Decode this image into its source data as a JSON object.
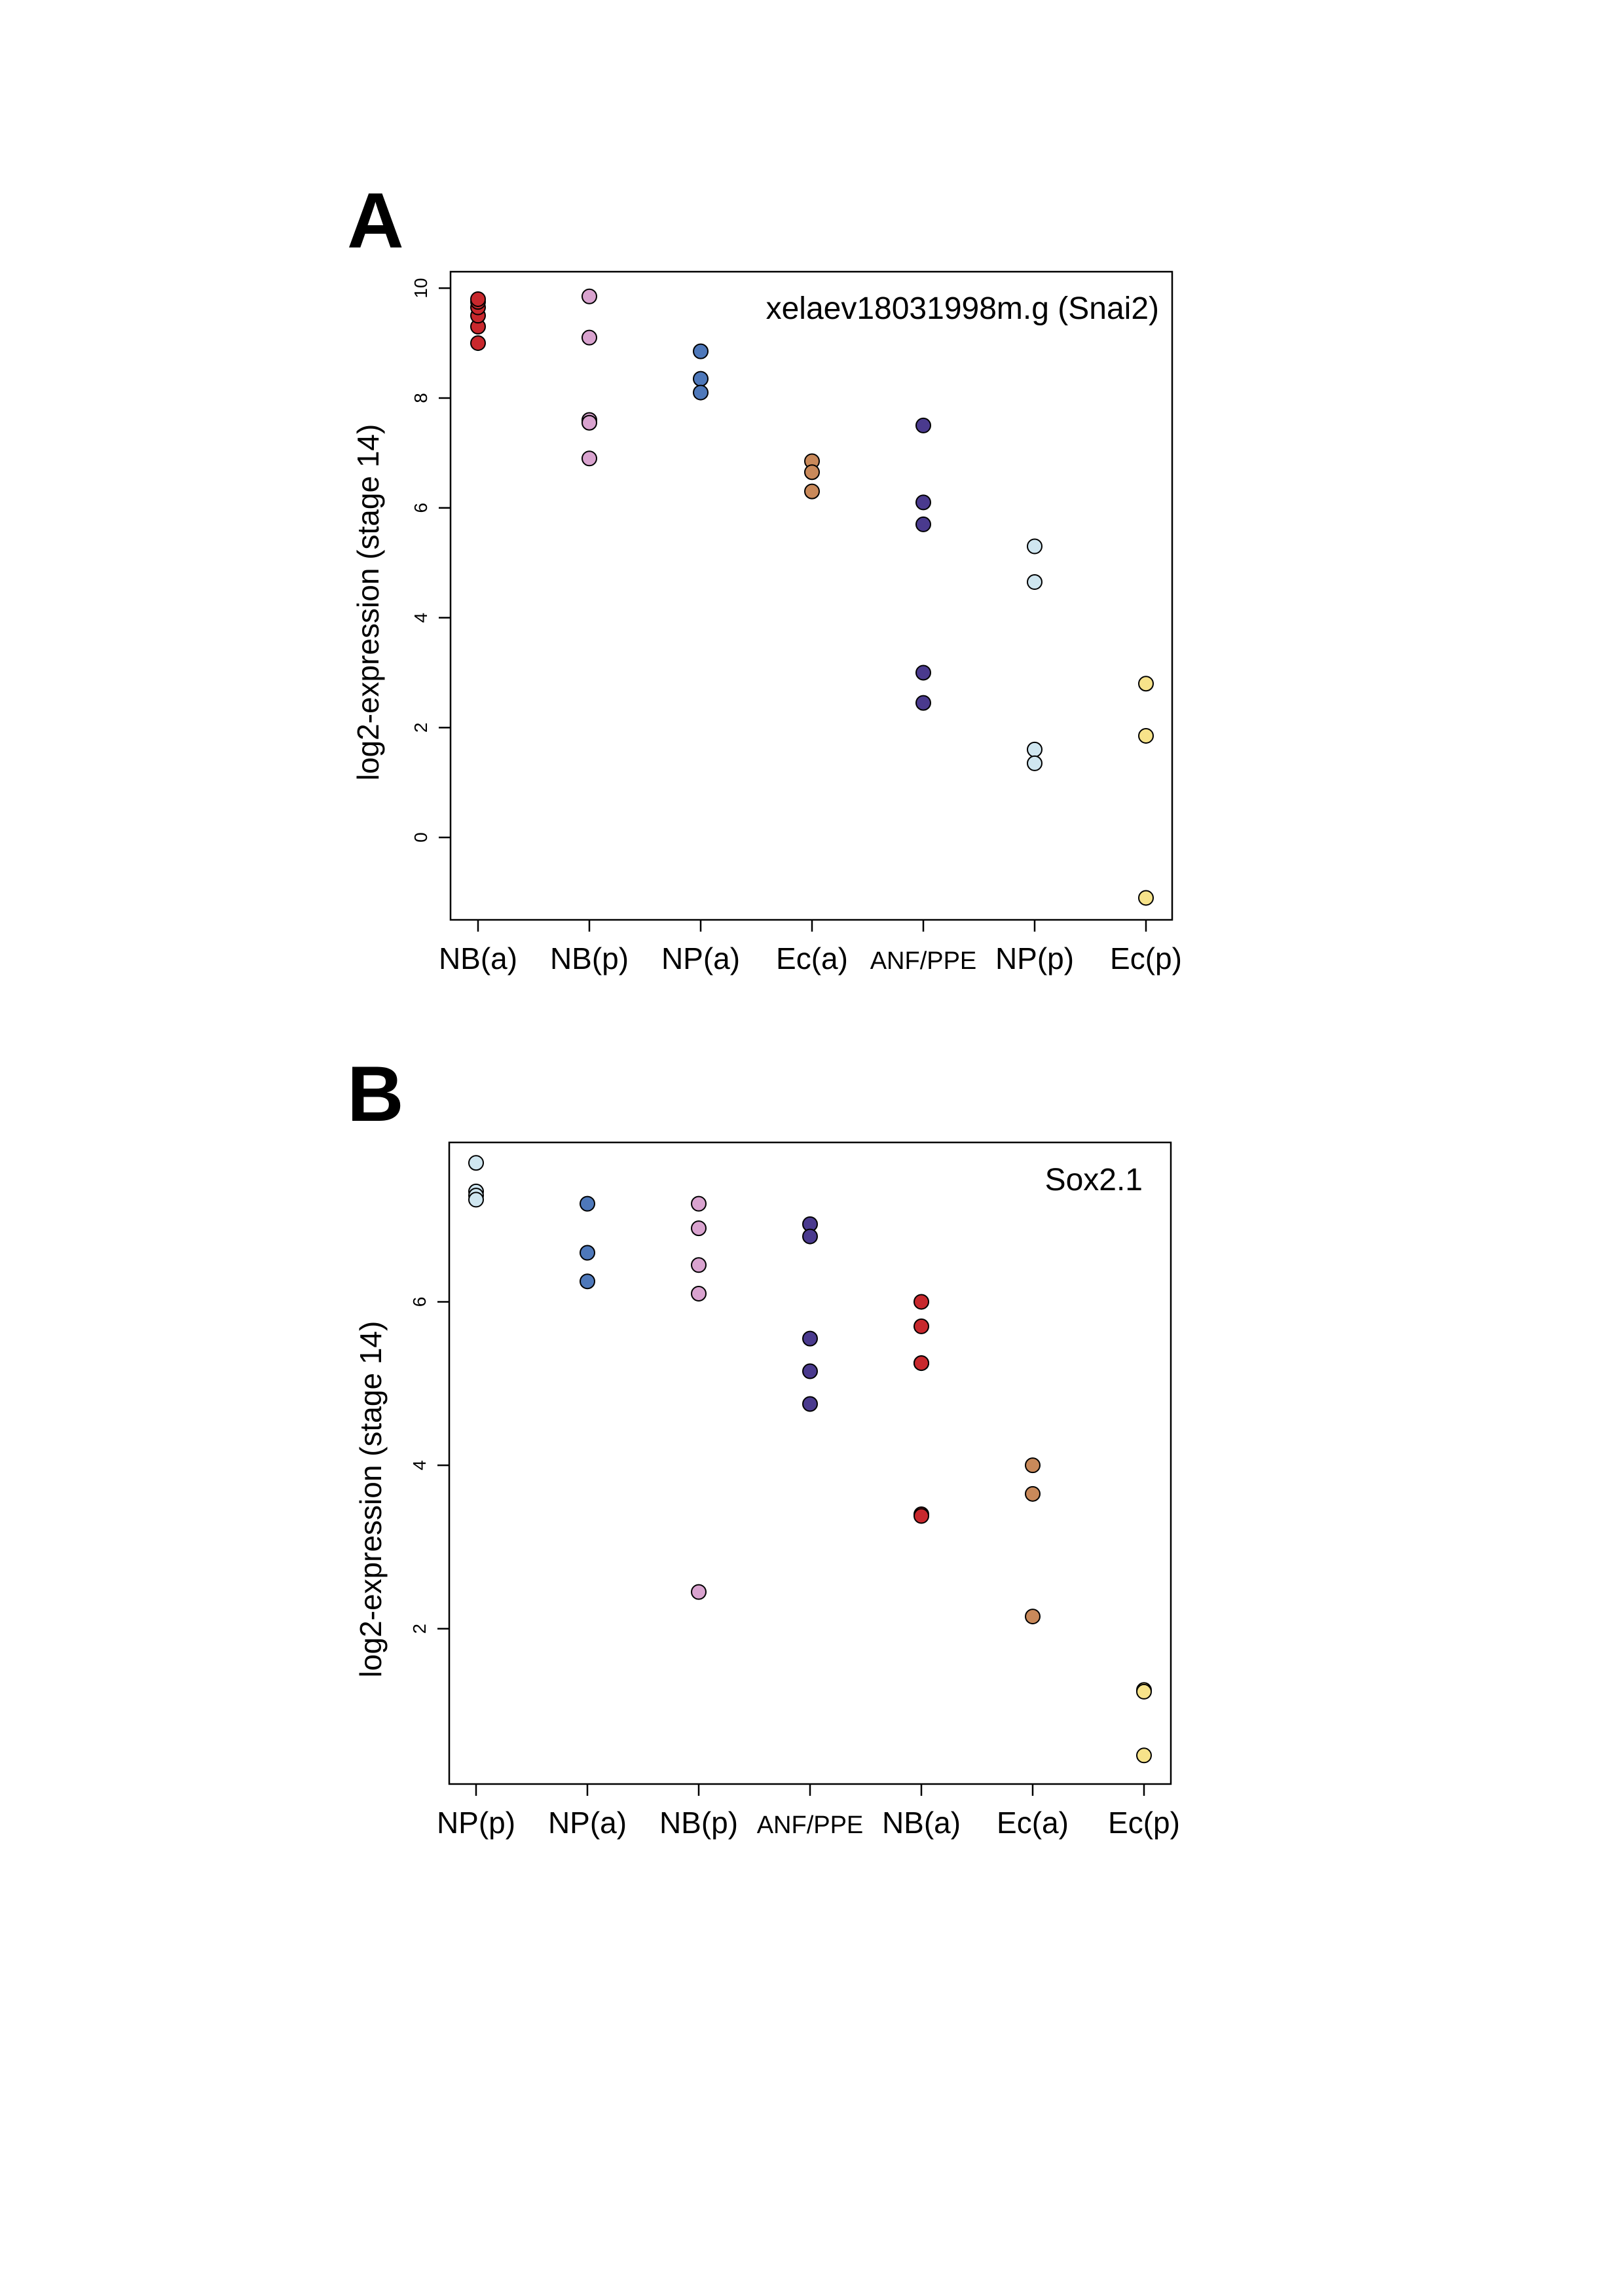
{
  "colors": {
    "NB(a)": "#C8282D",
    "NB(p)": "#D9A3CF",
    "NP(a)": "#4E78BA",
    "Ec(a)": "#C9895A",
    "ANF/PPE": "#4A3A8E",
    "NP(p)": "#CFE6F0",
    "Ec(p)": "#F7E38A"
  },
  "panels": [
    {
      "letter": "A",
      "ylabel": "log2-expression (stage 14)"
    },
    {
      "letter": "B",
      "ylabel": "log2-expression (stage 14)"
    }
  ],
  "chart_data": [
    {
      "type": "scatter",
      "title": "xelaev18031998m.g (Snai2)",
      "xlabel": "",
      "ylabel": "log2-expression (stage 14)",
      "ylim": [
        -1.5,
        10.3
      ],
      "yticks": [
        0,
        2,
        4,
        6,
        8,
        10
      ],
      "grid": false,
      "categories": [
        "NB(a)",
        "NB(p)",
        "NP(a)",
        "Ec(a)",
        "ANF/PPE",
        "NP(p)",
        "Ec(p)"
      ],
      "series": [
        {
          "category": "NB(a)",
          "values": [
            9.0,
            9.3,
            9.5,
            9.65,
            9.75,
            9.8
          ]
        },
        {
          "category": "NB(p)",
          "values": [
            9.85,
            9.1,
            7.6,
            7.55,
            6.9
          ]
        },
        {
          "category": "NP(a)",
          "values": [
            8.85,
            8.35,
            8.1
          ]
        },
        {
          "category": "Ec(a)",
          "values": [
            6.85,
            6.65,
            6.3
          ]
        },
        {
          "category": "ANF/PPE",
          "values": [
            7.5,
            6.1,
            5.7,
            3.0,
            2.45
          ]
        },
        {
          "category": "NP(p)",
          "values": [
            5.3,
            4.65,
            1.6,
            1.35
          ]
        },
        {
          "category": "Ec(p)",
          "values": [
            2.8,
            1.85,
            -1.1
          ]
        }
      ]
    },
    {
      "type": "scatter",
      "title": "Sox2.1",
      "xlabel": "",
      "ylabel": "log2-expression (stage 14)",
      "ylim": [
        0.1,
        7.95
      ],
      "yticks": [
        2,
        4,
        6
      ],
      "grid": false,
      "categories": [
        "NP(p)",
        "NP(a)",
        "NB(p)",
        "ANF/PPE",
        "NB(a)",
        "Ec(a)",
        "Ec(p)"
      ],
      "series": [
        {
          "category": "NP(p)",
          "values": [
            7.7,
            7.35,
            7.3,
            7.25
          ]
        },
        {
          "category": "NP(a)",
          "values": [
            7.2,
            6.6,
            6.25
          ]
        },
        {
          "category": "NB(p)",
          "values": [
            7.2,
            6.9,
            6.45,
            6.1,
            2.45
          ]
        },
        {
          "category": "ANF/PPE",
          "values": [
            6.95,
            6.8,
            5.55,
            5.15,
            4.75
          ]
        },
        {
          "category": "NB(a)",
          "values": [
            6.0,
            5.7,
            5.25,
            5.25,
            3.4,
            3.38
          ]
        },
        {
          "category": "Ec(a)",
          "values": [
            4.0,
            3.65,
            2.15
          ]
        },
        {
          "category": "Ec(p)",
          "values": [
            1.25,
            1.23,
            0.45
          ]
        }
      ]
    }
  ]
}
